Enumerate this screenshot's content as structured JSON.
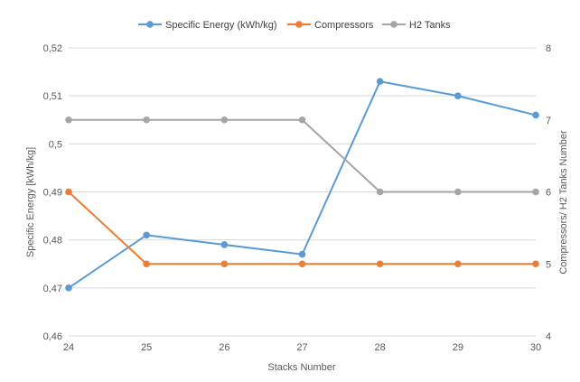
{
  "chart_data": {
    "type": "line",
    "x": [
      24,
      25,
      26,
      27,
      28,
      29,
      30
    ],
    "xlabel": "Stacks Number",
    "y_left": {
      "label": "Specific Energy [kWh/kg]",
      "lim": [
        0.46,
        0.52
      ],
      "ticks": [
        "0,46",
        "0,47",
        "0,48",
        "0,49",
        "0,5",
        "0,51",
        "0,52"
      ]
    },
    "y_right": {
      "label": "Compressors/ H2 Tanks Number",
      "lim": [
        4,
        8
      ],
      "ticks": [
        "4",
        "5",
        "6",
        "7",
        "8"
      ]
    },
    "grid": true,
    "legend_position": "top",
    "series": [
      {
        "name": "Specific Energy (kWh/kg)",
        "axis": "left",
        "color": "#5b9bd5",
        "values": [
          0.47,
          0.481,
          0.479,
          0.477,
          0.513,
          0.51,
          0.506
        ]
      },
      {
        "name": "Compressors",
        "axis": "right",
        "color": "#ed7d31",
        "values": [
          6,
          5,
          5,
          5,
          5,
          5,
          5
        ]
      },
      {
        "name": "H2 Tanks",
        "axis": "right",
        "color": "#a5a5a5",
        "values": [
          7,
          7,
          7,
          7,
          6,
          6,
          6
        ]
      }
    ]
  }
}
